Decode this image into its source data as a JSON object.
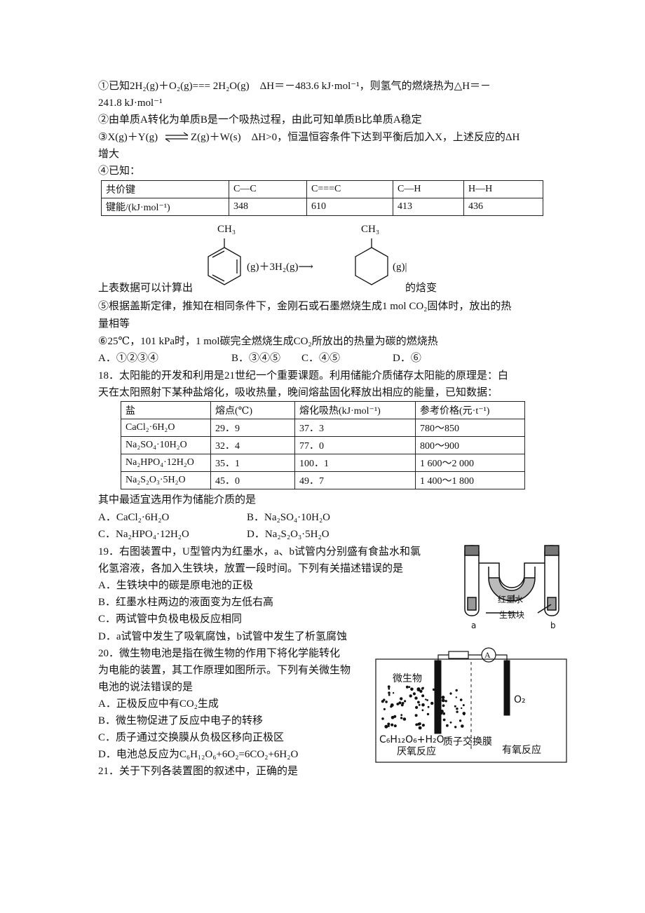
{
  "q17": {
    "s1": [
      "①已知2H₂(g)＋O₂(g)=== 2H₂O(g)　ΔH＝－483.6 kJ·mol⁻¹，则氢气的燃烧热为△H＝－",
      "241.8 kJ·mol⁻¹"
    ],
    "s2": "②由单质A转化为单质B是一个吸热过程，由此可知单质B比单质A稳定",
    "s3": [
      "③X(g)＋Y(g)",
      "Z(g)＋W(s)　ΔH>0，恒温恒容条件下达到平衡后加入X，上述反应的ΔH",
      "增大"
    ],
    "s4": "④已知：",
    "table": {
      "rows": [
        [
          "共价键",
          "C—C",
          "C===C",
          "C—H",
          "H—H"
        ],
        [
          "键能/(kJ·mol⁻¹)",
          "348",
          "610",
          "413",
          "436"
        ]
      ]
    },
    "reaction": {
      "left_group": "CH₃",
      "middle": "(g)＋3H₂(g)⟶",
      "right_group": "CH₃",
      "right": "(g)|",
      "before": "上表数据可以计算出",
      "after": "的焓变"
    },
    "s5": [
      "⑤根据盖斯定律，推知在相同条件下，金刚石或石墨燃烧生成1 mol CO₂固体时，放出的热",
      "量相等"
    ],
    "s6": "⑥25℃，101 kPa时，1 mol碳完全燃烧生成CO₂所放出的热量为碳的燃烧热",
    "options": [
      "A．①②③④",
      "B．③④⑤",
      "C．④⑤",
      "D．⑥"
    ]
  },
  "q18": {
    "stem": [
      "18．太阳能的开发和利用是21世纪一个重要课题。利用储能介质储存太阳能的原理是：白",
      "天在太阳照射下某种盐熔化，吸收热量，晚间熔盐固化释放出相应的能量，已知数据："
    ],
    "table": {
      "rows": [
        [
          "盐",
          "熔点(℃)",
          "熔化吸热(kJ·mol⁻¹)",
          "参考价格(元·t⁻¹)"
        ],
        [
          "CaCl₂·6H₂O",
          "29．9",
          "37．3",
          "780～850"
        ],
        [
          "Na₂SO₄·10H₂O",
          "32．4",
          "77．0",
          "800～900"
        ],
        [
          "Na₂HPO₄·12H₂O",
          "35．1",
          "100．1",
          "1 600～2 000"
        ],
        [
          "Na₂S₂O₃·5H₂O",
          "45．0",
          "49．7",
          "1 400～1 800"
        ]
      ]
    },
    "question": "其中最适宜选用作为储能介质的是",
    "options": [
      "A．CaCl₂·6H₂O",
      "B．Na₂SO₄·10H₂O",
      "C．Na₂HPO₄·12H₂O",
      "D．Na₂S₂O₃·5H₂O"
    ]
  },
  "q19": {
    "stem": [
      "19．右图装置中，U型管内为红墨水，a、b试管内分别盛有食盐水和氯",
      "化氢溶液，各加入生铁块，放置一段时间。下列有关描述错误的是"
    ],
    "options": [
      "A．生铁块中的碳是原电池的正极",
      "B．红墨水柱两边的液面变为左低右高",
      "C．两试管中负极电极反应相同",
      "D．a试管中发生了吸氧腐蚀，b试管中发生了析氢腐蚀"
    ],
    "figure": {
      "ink": "红墨水",
      "iron": "生铁块",
      "left": "a",
      "right": "b"
    }
  },
  "q20": {
    "stem": [
      "20．微生物电池是指在微生物的作用下将化学能转化",
      "为电能的装置，其工作原理如图所示。下列有关微生物",
      "电池的说法错误的是"
    ],
    "options": [
      "A．正极反应中有CO₂生成",
      "B．微生物促进了反应中电子的转移",
      "C．质子通过交换膜从负极区移向正极区",
      "D．电池总反应为C₆H₁₂O₆+6O₂=6CO₂+6H₂O"
    ],
    "figure": {
      "meter": "A",
      "microbe": "微生物",
      "oxygen": "O₂",
      "glucose": "C₆H₁₂O₆+H₂O",
      "membrane": "质子交换膜",
      "anaerobic": "厌氧反应",
      "aerobic": "有氧反应"
    }
  },
  "q21": {
    "stem": "21．关于下列各装置图的叙述中，正确的是"
  }
}
